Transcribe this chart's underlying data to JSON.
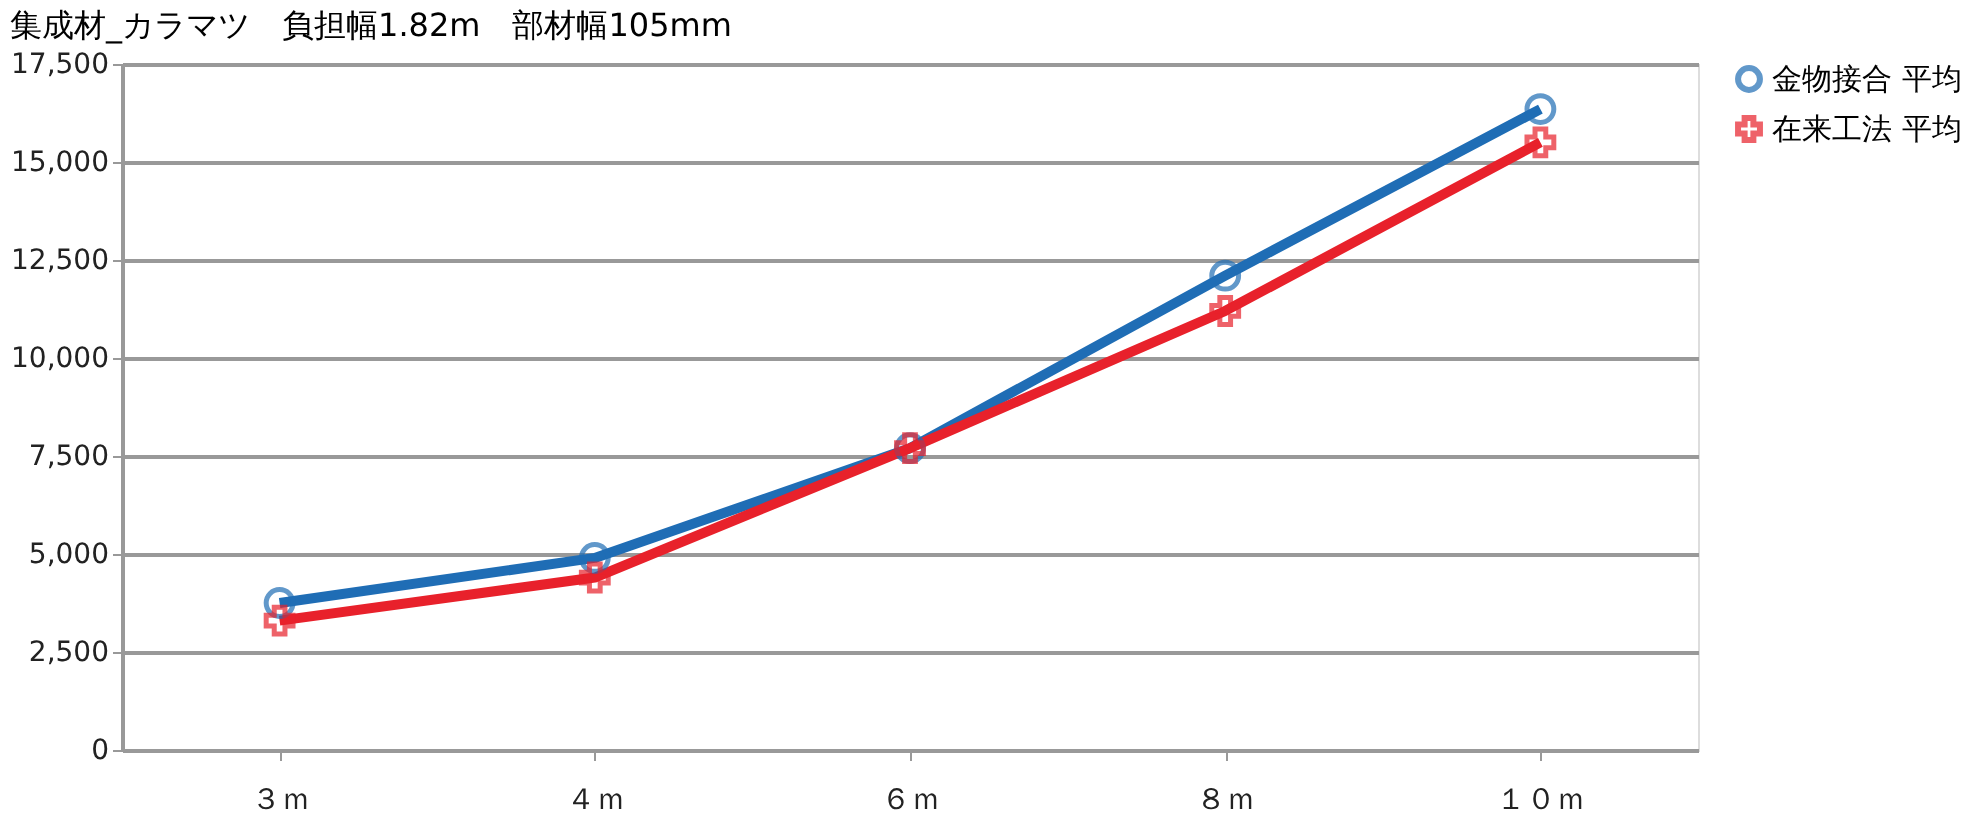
{
  "chart_data": {
    "type": "line",
    "title": "集成材_カラマツ　負担幅1.82m　部材幅105mm",
    "categories": [
      "３ｍ",
      "４ｍ",
      "６ｍ",
      "８ｍ",
      "１０ｍ"
    ],
    "series": [
      {
        "name": "金物接合 平均",
        "color": "#1f6db5",
        "marker": "circle",
        "values": [
          3750,
          4900,
          7700,
          12100,
          16350
        ]
      },
      {
        "name": "在来工法 平均",
        "color": "#e8212b",
        "marker": "cross",
        "values": [
          3300,
          4400,
          7700,
          11200,
          15500
        ]
      }
    ],
    "ylim": [
      0,
      17500
    ],
    "yticks": [
      {
        "value": 0,
        "label": "0"
      },
      {
        "value": 2500,
        "label": "2,500"
      },
      {
        "value": 5000,
        "label": "5,000"
      },
      {
        "value": 7500,
        "label": "7,500"
      },
      {
        "value": 10000,
        "label": "10,000"
      },
      {
        "value": 12500,
        "label": "12,500"
      },
      {
        "value": 15000,
        "label": "15,000"
      },
      {
        "value": 17500,
        "label": "17,500"
      }
    ],
    "grid": "y",
    "legend": "right"
  }
}
